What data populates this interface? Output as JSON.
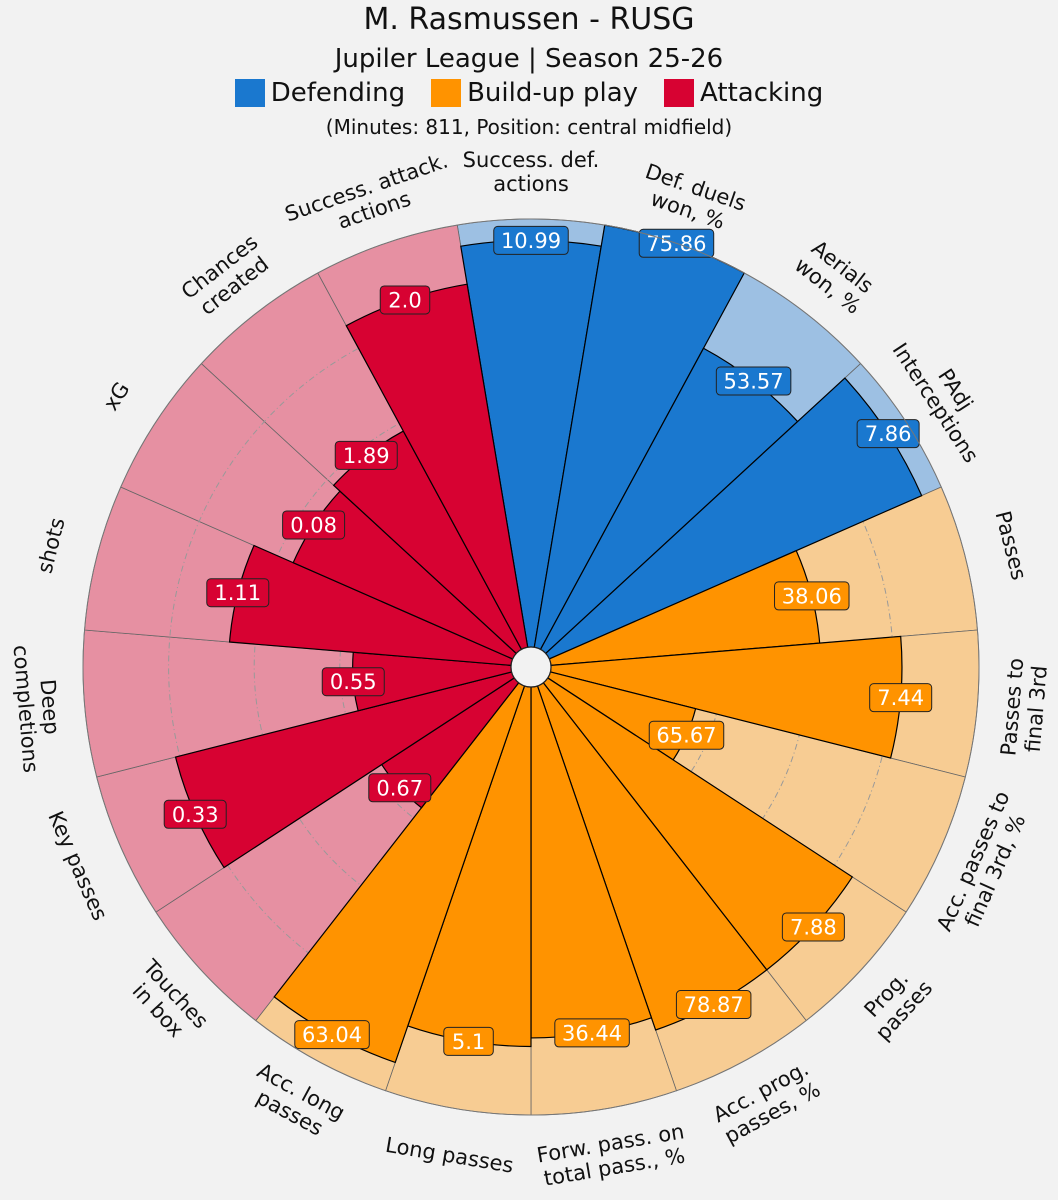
{
  "header": {
    "title": "M. Rasmussen - RUSG",
    "subtitle": "Jupiler League | Season 25-26",
    "info": "(Minutes: 811, Position: central midfield)"
  },
  "legend": [
    {
      "label": "Defending",
      "color": "#1a78cf"
    },
    {
      "label": "Build-up play",
      "color": "#ff9300"
    },
    {
      "label": "Attacking",
      "color": "#d70232"
    }
  ],
  "chart_data": {
    "type": "pizza",
    "value_scale": "percentile",
    "range": [
      0,
      100
    ],
    "gridlines": [
      20,
      40,
      60,
      80
    ],
    "colors": {
      "Defending": {
        "bar": "#1a78cf",
        "bg": "#9dc0e3"
      },
      "Build-up play": {
        "bar": "#ff9300",
        "bg": "#f7cc93"
      },
      "Attacking": {
        "bar": "#d70232",
        "bg": "#e690a2"
      }
    },
    "slices": [
      {
        "label": "Success. def.\nactions",
        "value": "10.99",
        "percentile": 95,
        "group": "Defending"
      },
      {
        "label": "Def. duels\nwon, %",
        "value": "75.86",
        "percentile": 100,
        "group": "Defending"
      },
      {
        "label": "Aerials\nwon, %",
        "value": "53.57",
        "percentile": 80,
        "group": "Defending"
      },
      {
        "label": "PAdj\nInterceptions",
        "value": "7.86",
        "percentile": 95,
        "group": "Defending"
      },
      {
        "label": "Passes",
        "value": "38.06",
        "percentile": 63,
        "group": "Build-up play"
      },
      {
        "label": "Passes to\nfinal 3rd",
        "value": "7.44",
        "percentile": 82,
        "group": "Build-up play"
      },
      {
        "label": "Acc. passes to\nfinal 3rd, %",
        "value": "65.67",
        "percentile": 35,
        "group": "Build-up play"
      },
      {
        "label": "Prog.\npasses",
        "value": "7.88",
        "percentile": 85,
        "group": "Build-up play"
      },
      {
        "label": "Acc. prog.\npasses, %",
        "value": "78.87",
        "percentile": 85,
        "group": "Build-up play"
      },
      {
        "label": "Forw. pass. on\ntotal pass., %",
        "value": "36.44",
        "percentile": 82,
        "group": "Build-up play"
      },
      {
        "label": "Long passes",
        "value": "5.1",
        "percentile": 84,
        "group": "Build-up play"
      },
      {
        "label": "Acc. long\npasses",
        "value": "63.04",
        "percentile": 93,
        "group": "Build-up play"
      },
      {
        "label": "Touches\nin box",
        "value": "0.67",
        "percentile": 37,
        "group": "Attacking"
      },
      {
        "label": "Key passes",
        "value": "0.33",
        "percentile": 81,
        "group": "Attacking"
      },
      {
        "label": "Deep\ncompletions",
        "value": "0.55",
        "percentile": 37,
        "group": "Attacking"
      },
      {
        "label": "shots",
        "value": "1.11",
        "percentile": 66,
        "group": "Attacking"
      },
      {
        "label": "xG",
        "value": "0.08",
        "percentile": 56,
        "group": "Attacking"
      },
      {
        "label": "Chances\ncreated",
        "value": "1.89",
        "percentile": 58,
        "group": "Attacking"
      },
      {
        "label": "Success. attack.\nactions",
        "value": "2.0",
        "percentile": 86,
        "group": "Attacking"
      }
    ]
  }
}
